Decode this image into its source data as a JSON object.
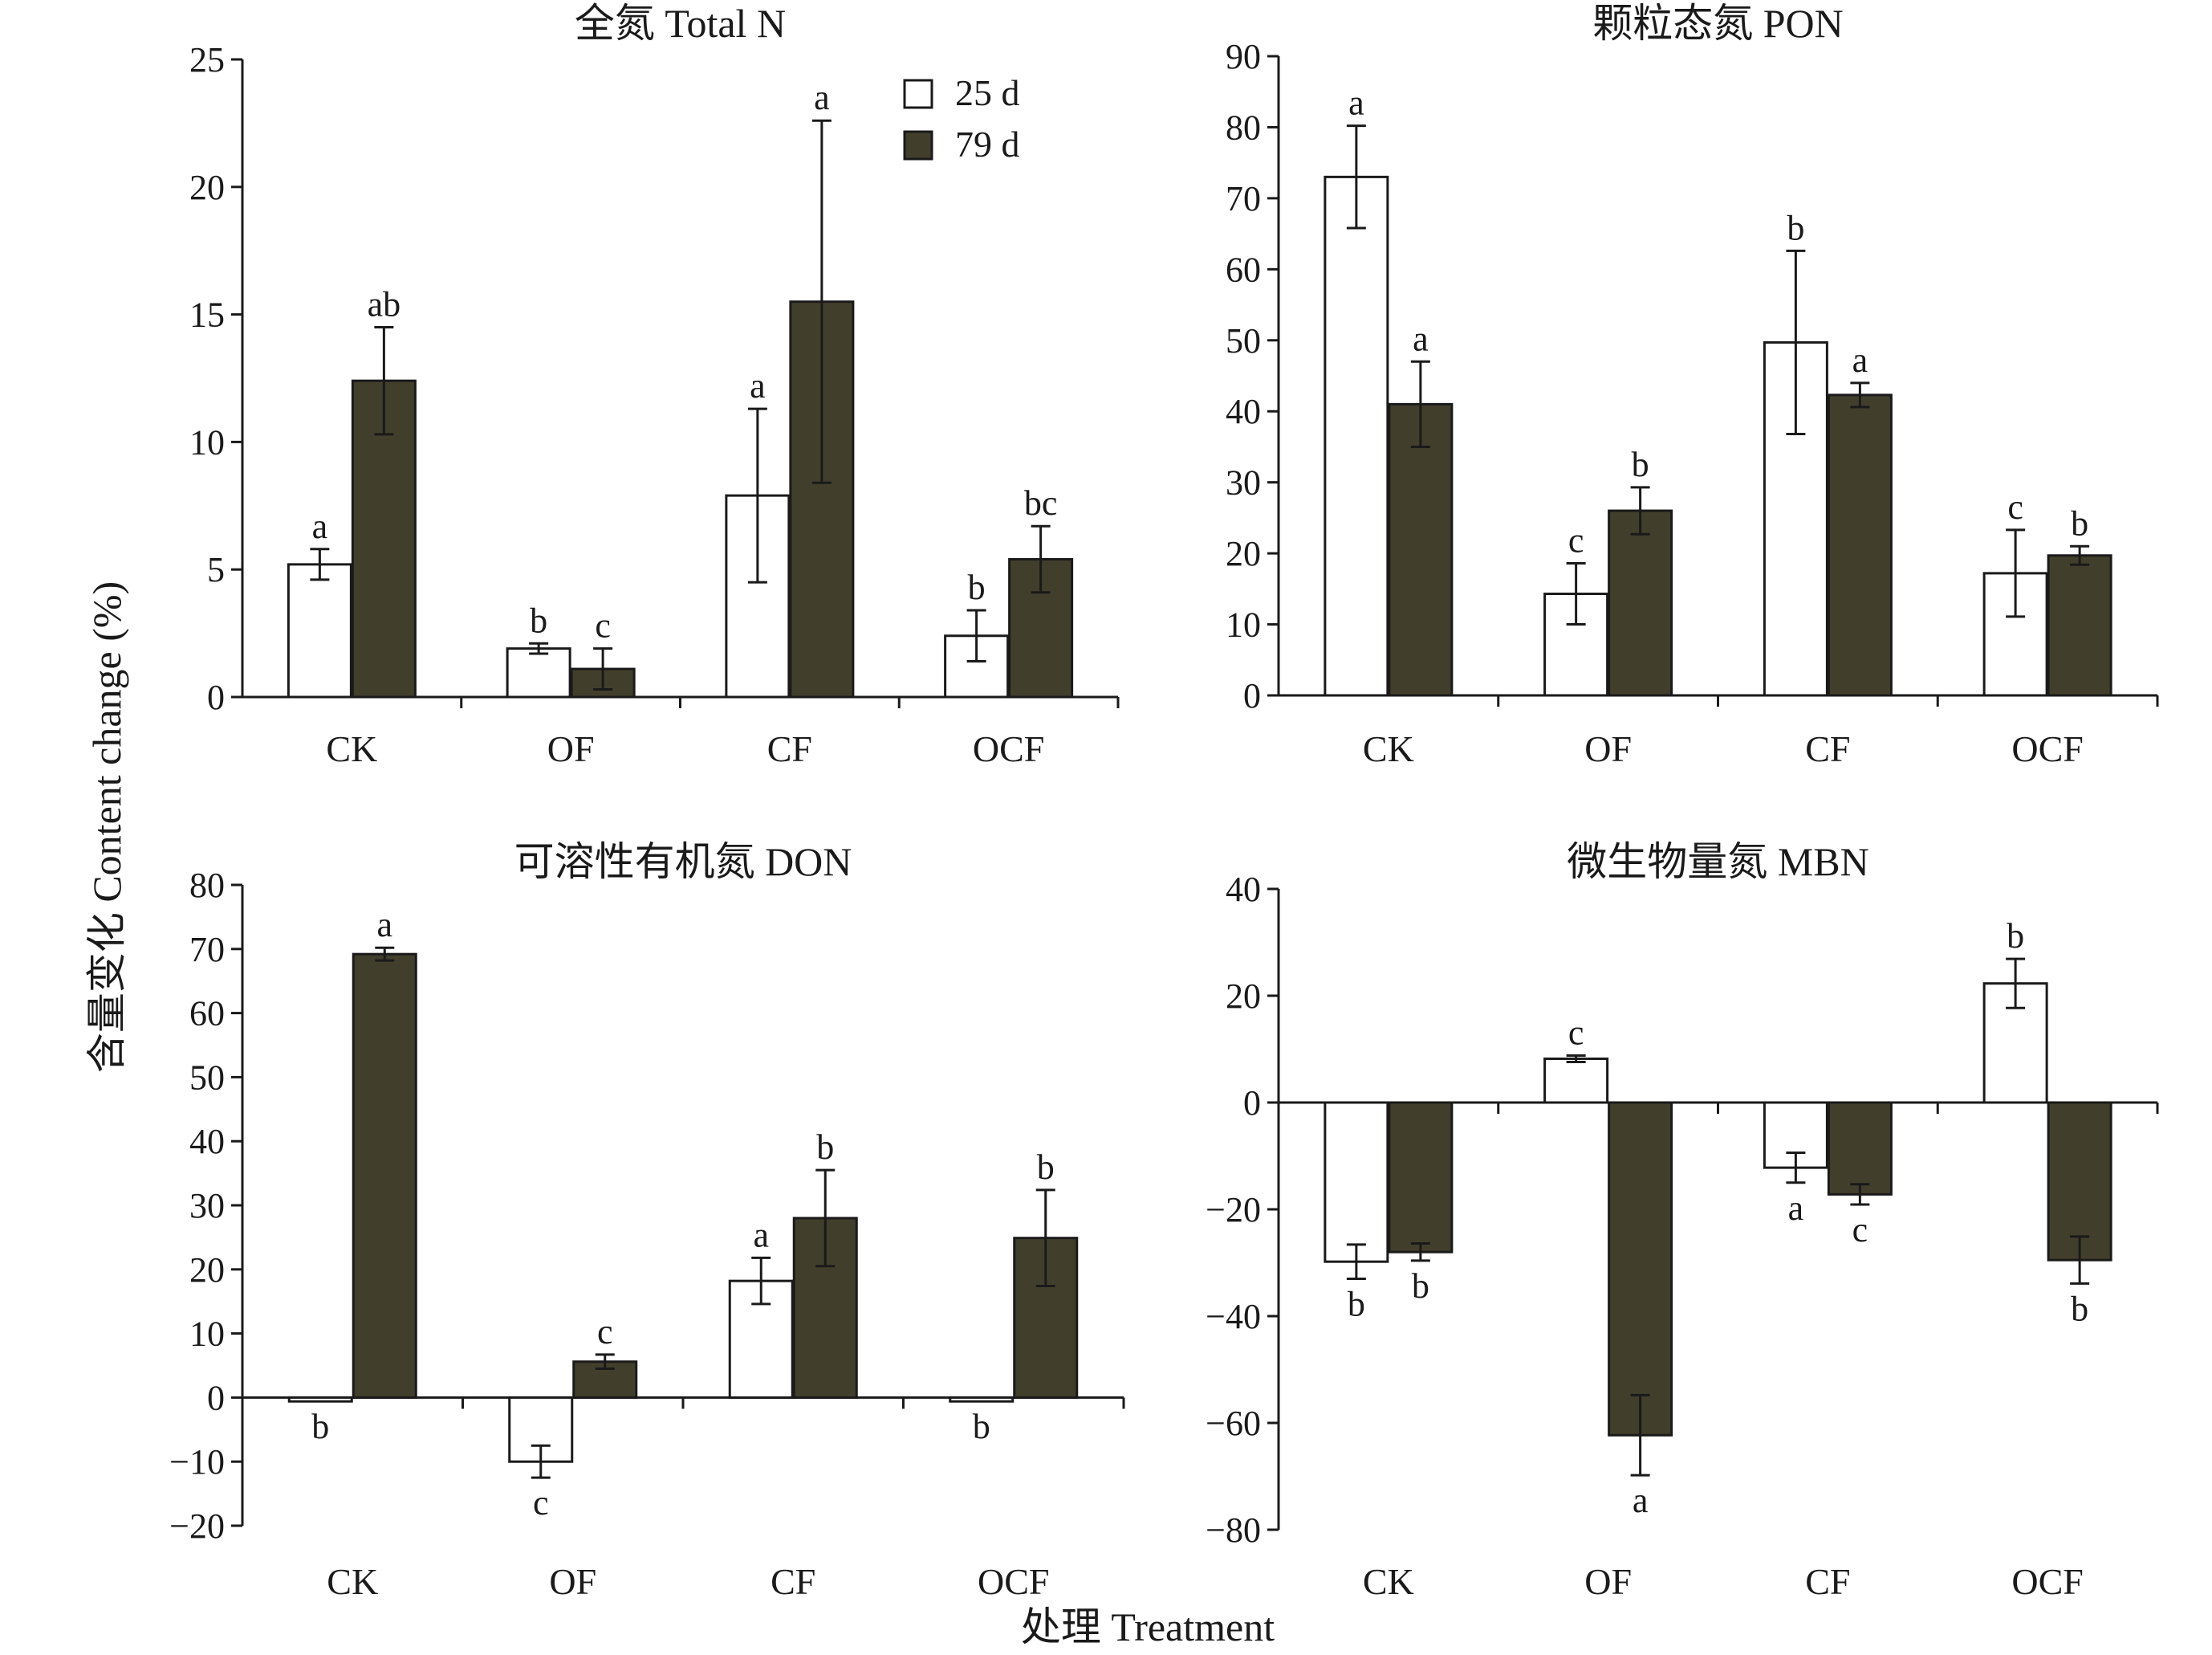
{
  "figure": {
    "y_axis_label": "含量变化 Content change (%)",
    "x_axis_label": "处理 Treatment"
  },
  "legend": {
    "items": [
      {
        "label": "25 d",
        "color": "#ffffff"
      },
      {
        "label": "79 d",
        "color": "#413f2c"
      }
    ]
  },
  "colors": {
    "series_25d": "#ffffff",
    "series_79d": "#413f2c",
    "axis": "#1a1a1a"
  },
  "chart_data": [
    {
      "type": "bar",
      "title": "全氮 Total N",
      "categories": [
        "CK",
        "OF",
        "CF",
        "OCF"
      ],
      "ylim": [
        0,
        25
      ],
      "yticks": [
        0,
        5,
        10,
        15,
        20,
        25
      ],
      "ytick_labels": [
        "0",
        "5",
        "10",
        "15",
        "20",
        "25"
      ],
      "series": [
        {
          "name": "25 d",
          "values": [
            5.2,
            1.9,
            7.9,
            2.4
          ],
          "errors": [
            0.6,
            0.2,
            3.4,
            1.0
          ],
          "letters": [
            "a",
            "b",
            "a",
            "b"
          ]
        },
        {
          "name": "79 d",
          "values": [
            12.4,
            1.1,
            15.5,
            5.4
          ],
          "errors": [
            2.1,
            0.8,
            7.1,
            1.3
          ],
          "letters": [
            "ab",
            "c",
            "a",
            "bc"
          ]
        }
      ]
    },
    {
      "type": "bar",
      "title": "颗粒态氮 PON",
      "categories": [
        "CK",
        "OF",
        "CF",
        "OCF"
      ],
      "ylim": [
        0,
        90
      ],
      "yticks": [
        0,
        10,
        20,
        30,
        40,
        50,
        60,
        70,
        80,
        90
      ],
      "ytick_labels": [
        "0",
        "10",
        "20",
        "30",
        "40",
        "50",
        "60",
        "70",
        "80",
        "90"
      ],
      "series": [
        {
          "name": "25 d",
          "values": [
            73.0,
            14.3,
            49.7,
            17.2
          ],
          "errors": [
            7.2,
            4.3,
            12.9,
            6.1
          ],
          "letters": [
            "a",
            "c",
            "b",
            "c"
          ]
        },
        {
          "name": "79 d",
          "values": [
            41.0,
            26.0,
            42.3,
            19.7
          ],
          "errors": [
            6.0,
            3.3,
            1.7,
            1.3
          ],
          "letters": [
            "a",
            "b",
            "a",
            "b"
          ]
        }
      ]
    },
    {
      "type": "bar",
      "title": "可溶性有机氮 DON",
      "categories": [
        "CK",
        "OF",
        "CF",
        "OCF"
      ],
      "ylim": [
        -20,
        80
      ],
      "yticks": [
        -20,
        -10,
        0,
        10,
        20,
        30,
        40,
        50,
        60,
        70,
        80
      ],
      "ytick_labels": [
        "−20",
        "−10",
        "0",
        "10",
        "20",
        "30",
        "40",
        "50",
        "60",
        "70",
        "80"
      ],
      "series": [
        {
          "name": "25 d",
          "values": [
            -0.6,
            -10.0,
            18.2,
            -0.6
          ],
          "errors": [
            0.0,
            2.5,
            3.6,
            0.0
          ],
          "letters": [
            "b",
            "c",
            "a",
            "b"
          ]
        },
        {
          "name": "79 d",
          "values": [
            69.2,
            5.6,
            28.0,
            24.9
          ],
          "errors": [
            1.0,
            1.1,
            7.5,
            7.5
          ],
          "letters": [
            "a",
            "c",
            "b",
            "b"
          ]
        }
      ]
    },
    {
      "type": "bar",
      "title": "微生物量氮 MBN",
      "categories": [
        "CK",
        "OF",
        "CF",
        "OCF"
      ],
      "ylim": [
        -80,
        40
      ],
      "yticks": [
        -80,
        -60,
        -40,
        -20,
        0,
        20,
        40
      ],
      "ytick_labels": [
        "−80",
        "−60",
        "−40",
        "−20",
        "0",
        "20",
        "40"
      ],
      "series": [
        {
          "name": "25 d",
          "values": [
            -29.8,
            8.2,
            -12.2,
            22.3
          ],
          "errors": [
            3.2,
            0.6,
            2.8,
            4.6
          ],
          "letters": [
            "b",
            "c",
            "a",
            "b"
          ]
        },
        {
          "name": "79 d",
          "values": [
            -28.0,
            -62.3,
            -17.2,
            -29.5
          ],
          "errors": [
            1.6,
            7.5,
            1.9,
            4.4
          ],
          "letters": [
            "b",
            "a",
            "c",
            "b"
          ]
        }
      ]
    }
  ]
}
